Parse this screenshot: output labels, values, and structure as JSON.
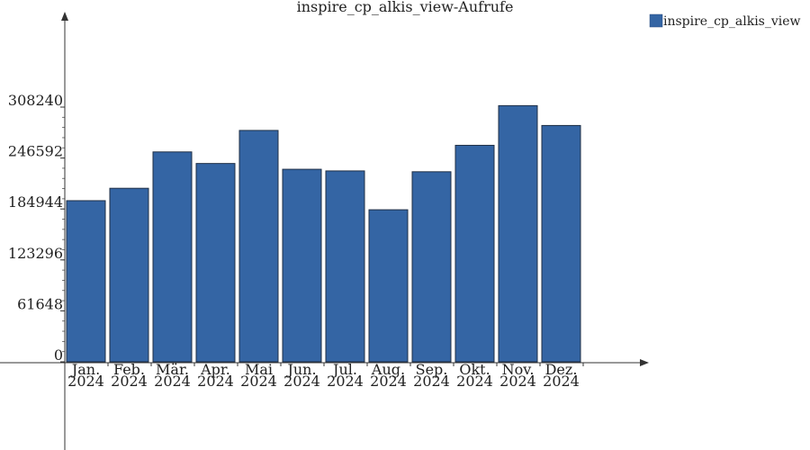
{
  "chart_data": {
    "type": "bar",
    "title": "inspire_cp_alkis_view-Aufrufe",
    "categories": [
      [
        "Jan.",
        "2024"
      ],
      [
        "Feb.",
        "2024"
      ],
      [
        "Mär.",
        "2024"
      ],
      [
        "Apr.",
        "2024"
      ],
      [
        "Mai",
        "2024"
      ],
      [
        "Jun.",
        "2024"
      ],
      [
        "Jul.",
        "2024"
      ],
      [
        "Aug.",
        "2024"
      ],
      [
        "Sep.",
        "2024"
      ],
      [
        "Okt.",
        "2024"
      ],
      [
        "Nov.",
        "2024"
      ],
      [
        "Dez.",
        "2024"
      ]
    ],
    "series": [
      {
        "name": "inspire_cp_alkis_view",
        "color": "#3465a4",
        "values": [
          195000,
          210000,
          254000,
          240000,
          280000,
          233000,
          231000,
          184000,
          230000,
          262000,
          310000,
          286000
        ]
      }
    ],
    "yticks": [
      0,
      61648,
      123296,
      184944,
      246592,
      308240
    ],
    "ylim": [
      0,
      308240
    ],
    "xlabel": "",
    "ylabel": "",
    "grid": false,
    "legend_position": "top-right"
  }
}
